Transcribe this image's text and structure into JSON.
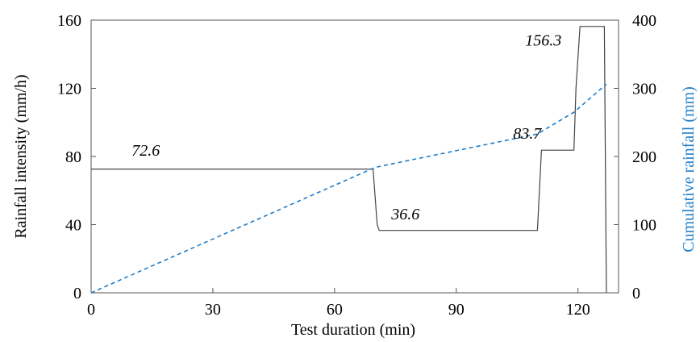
{
  "chart_data": {
    "type": "line",
    "xlabel": "Test duration (min)",
    "ylabel": "Rainfall intensity (mm/h)",
    "y2label": "Cumulative rainfall (mm)",
    "xlim": [
      0,
      130
    ],
    "ylim": [
      0,
      160
    ],
    "y2lim": [
      0,
      400
    ],
    "x_ticks": [
      0,
      30,
      60,
      90,
      120
    ],
    "y_ticks": [
      0,
      40,
      80,
      120,
      160
    ],
    "y2_ticks": [
      0,
      100,
      200,
      300,
      400
    ],
    "grid": false,
    "legend": "none",
    "series": [
      {
        "axis": "left",
        "color": "#444444",
        "style": "solid",
        "x": [
          0,
          69.5,
          70.5,
          71,
          110,
          111,
          112,
          119,
          119.5,
          120.5,
          126.5,
          127
        ],
        "y": [
          72.6,
          72.6,
          40,
          36.6,
          36.6,
          83.7,
          83.7,
          83.7,
          120,
          156.3,
          156.3,
          0
        ]
      },
      {
        "axis": "right",
        "color": "#1f7ec9",
        "style": "dashed",
        "x": [
          0,
          70,
          110,
          119,
          127
        ],
        "y": [
          0,
          184,
          233,
          265,
          306
        ]
      }
    ],
    "annotations": [
      {
        "text": "72.6",
        "x": 10,
        "y": 80.5
      },
      {
        "text": "36.6",
        "x": 74,
        "y": 43
      },
      {
        "text": "83.7",
        "x": 104,
        "y": 90.5
      },
      {
        "text": "156.3",
        "x": 107,
        "y": 145
      }
    ]
  }
}
